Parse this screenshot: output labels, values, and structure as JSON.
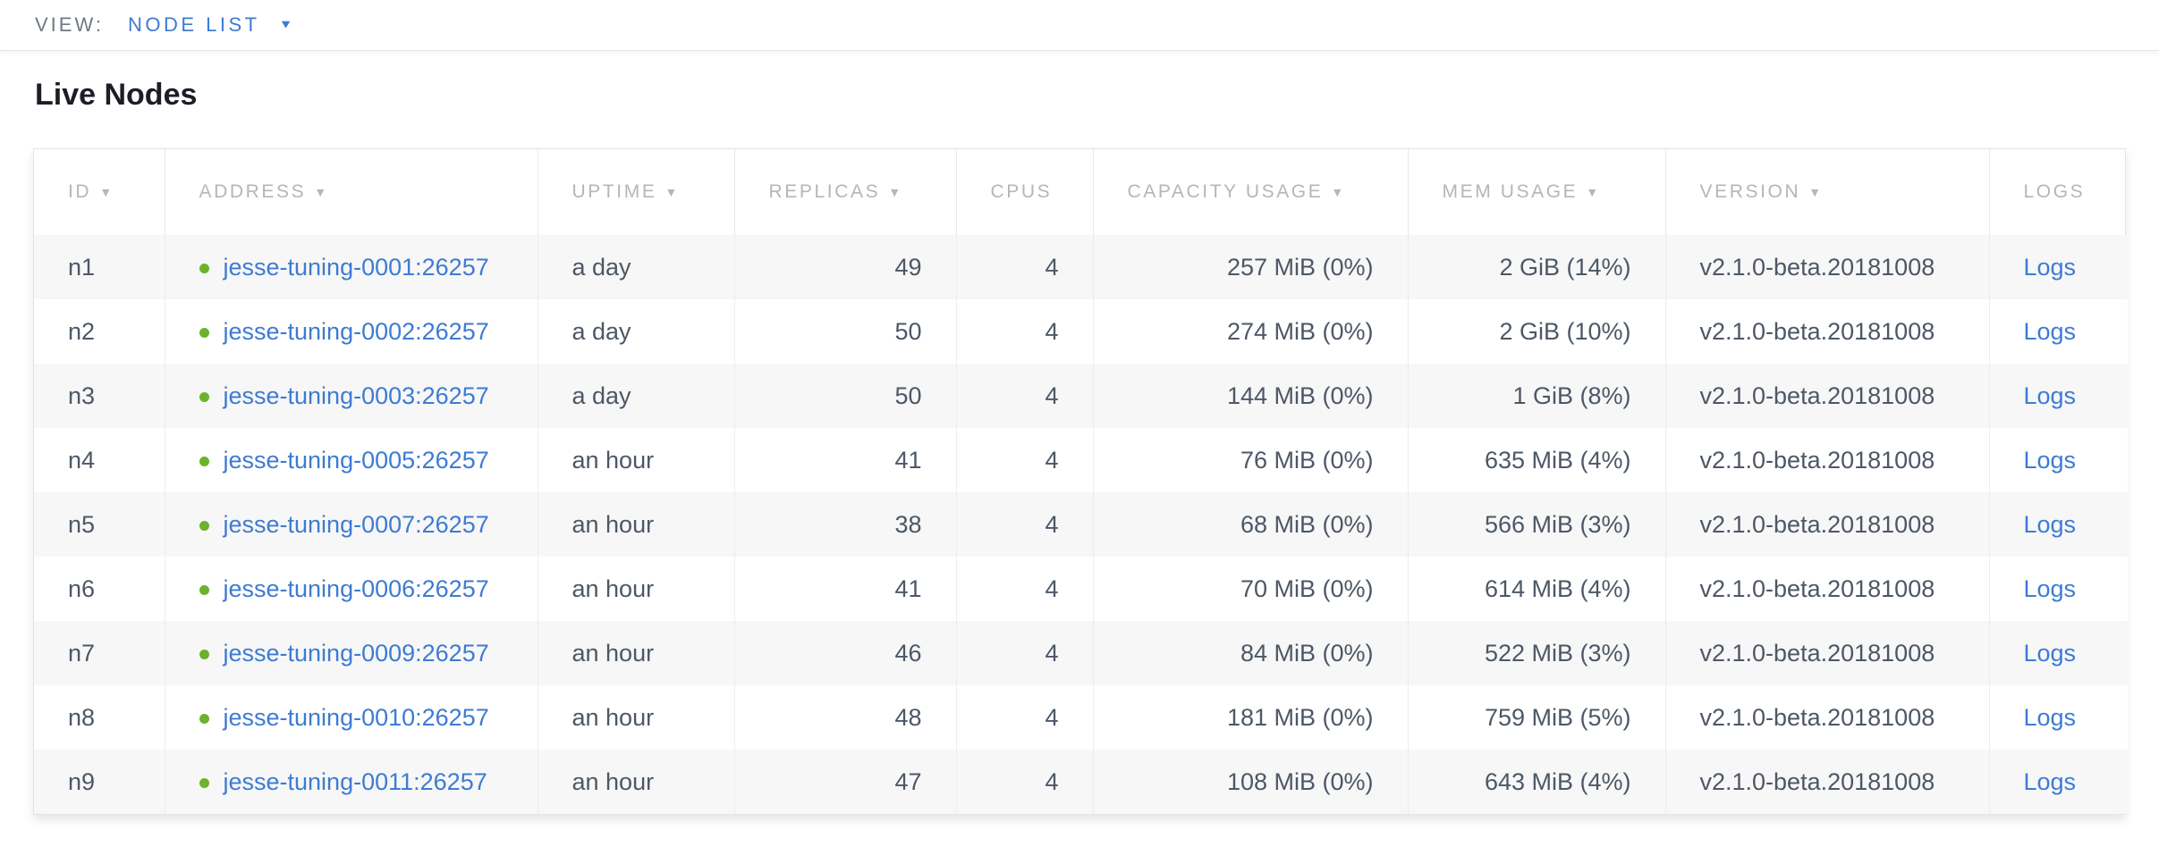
{
  "view_bar": {
    "label": "VIEW:",
    "selected": "NODE LIST"
  },
  "page": {
    "title": "Live Nodes"
  },
  "icons": {
    "sort_arrow": "▼",
    "dropdown_caret": "▼",
    "node_status": "green-dot"
  },
  "colors": {
    "accent_blue": "#3d7bd3",
    "healthy_green": "#6db22d",
    "header_gray": "#b4b6b8",
    "row_text": "#4d5766",
    "stripe_bg": "#f7f7f7"
  },
  "table": {
    "columns": [
      {
        "key": "id",
        "label": "ID",
        "sortable": true,
        "align": "left"
      },
      {
        "key": "address",
        "label": "ADDRESS",
        "sortable": true,
        "align": "left"
      },
      {
        "key": "uptime",
        "label": "UPTIME",
        "sortable": true,
        "align": "left"
      },
      {
        "key": "replicas",
        "label": "REPLICAS",
        "sortable": true,
        "align": "right"
      },
      {
        "key": "cpus",
        "label": "CPUS",
        "sortable": false,
        "align": "right"
      },
      {
        "key": "capacity",
        "label": "CAPACITY USAGE",
        "sortable": true,
        "align": "right"
      },
      {
        "key": "mem",
        "label": "MEM USAGE",
        "sortable": true,
        "align": "right"
      },
      {
        "key": "version",
        "label": "VERSION",
        "sortable": true,
        "align": "left"
      },
      {
        "key": "logs",
        "label": "LOGS",
        "sortable": false,
        "align": "left"
      }
    ],
    "rows": [
      {
        "id": "n1",
        "status": "healthy",
        "address": "jesse-tuning-0001:26257",
        "uptime": "a day",
        "replicas": "49",
        "cpus": "4",
        "capacity": "257 MiB (0%)",
        "mem": "2 GiB (14%)",
        "version": "v2.1.0-beta.20181008",
        "logs": "Logs"
      },
      {
        "id": "n2",
        "status": "healthy",
        "address": "jesse-tuning-0002:26257",
        "uptime": "a day",
        "replicas": "50",
        "cpus": "4",
        "capacity": "274 MiB (0%)",
        "mem": "2 GiB (10%)",
        "version": "v2.1.0-beta.20181008",
        "logs": "Logs"
      },
      {
        "id": "n3",
        "status": "healthy",
        "address": "jesse-tuning-0003:26257",
        "uptime": "a day",
        "replicas": "50",
        "cpus": "4",
        "capacity": "144 MiB (0%)",
        "mem": "1 GiB (8%)",
        "version": "v2.1.0-beta.20181008",
        "logs": "Logs"
      },
      {
        "id": "n4",
        "status": "healthy",
        "address": "jesse-tuning-0005:26257",
        "uptime": "an hour",
        "replicas": "41",
        "cpus": "4",
        "capacity": "76 MiB (0%)",
        "mem": "635 MiB (4%)",
        "version": "v2.1.0-beta.20181008",
        "logs": "Logs"
      },
      {
        "id": "n5",
        "status": "healthy",
        "address": "jesse-tuning-0007:26257",
        "uptime": "an hour",
        "replicas": "38",
        "cpus": "4",
        "capacity": "68 MiB (0%)",
        "mem": "566 MiB (3%)",
        "version": "v2.1.0-beta.20181008",
        "logs": "Logs"
      },
      {
        "id": "n6",
        "status": "healthy",
        "address": "jesse-tuning-0006:26257",
        "uptime": "an hour",
        "replicas": "41",
        "cpus": "4",
        "capacity": "70 MiB (0%)",
        "mem": "614 MiB (4%)",
        "version": "v2.1.0-beta.20181008",
        "logs": "Logs"
      },
      {
        "id": "n7",
        "status": "healthy",
        "address": "jesse-tuning-0009:26257",
        "uptime": "an hour",
        "replicas": "46",
        "cpus": "4",
        "capacity": "84 MiB (0%)",
        "mem": "522 MiB (3%)",
        "version": "v2.1.0-beta.20181008",
        "logs": "Logs"
      },
      {
        "id": "n8",
        "status": "healthy",
        "address": "jesse-tuning-0010:26257",
        "uptime": "an hour",
        "replicas": "48",
        "cpus": "4",
        "capacity": "181 MiB (0%)",
        "mem": "759 MiB (5%)",
        "version": "v2.1.0-beta.20181008",
        "logs": "Logs"
      },
      {
        "id": "n9",
        "status": "healthy",
        "address": "jesse-tuning-0011:26257",
        "uptime": "an hour",
        "replicas": "47",
        "cpus": "4",
        "capacity": "108 MiB (0%)",
        "mem": "643 MiB (4%)",
        "version": "v2.1.0-beta.20181008",
        "logs": "Logs"
      }
    ]
  }
}
